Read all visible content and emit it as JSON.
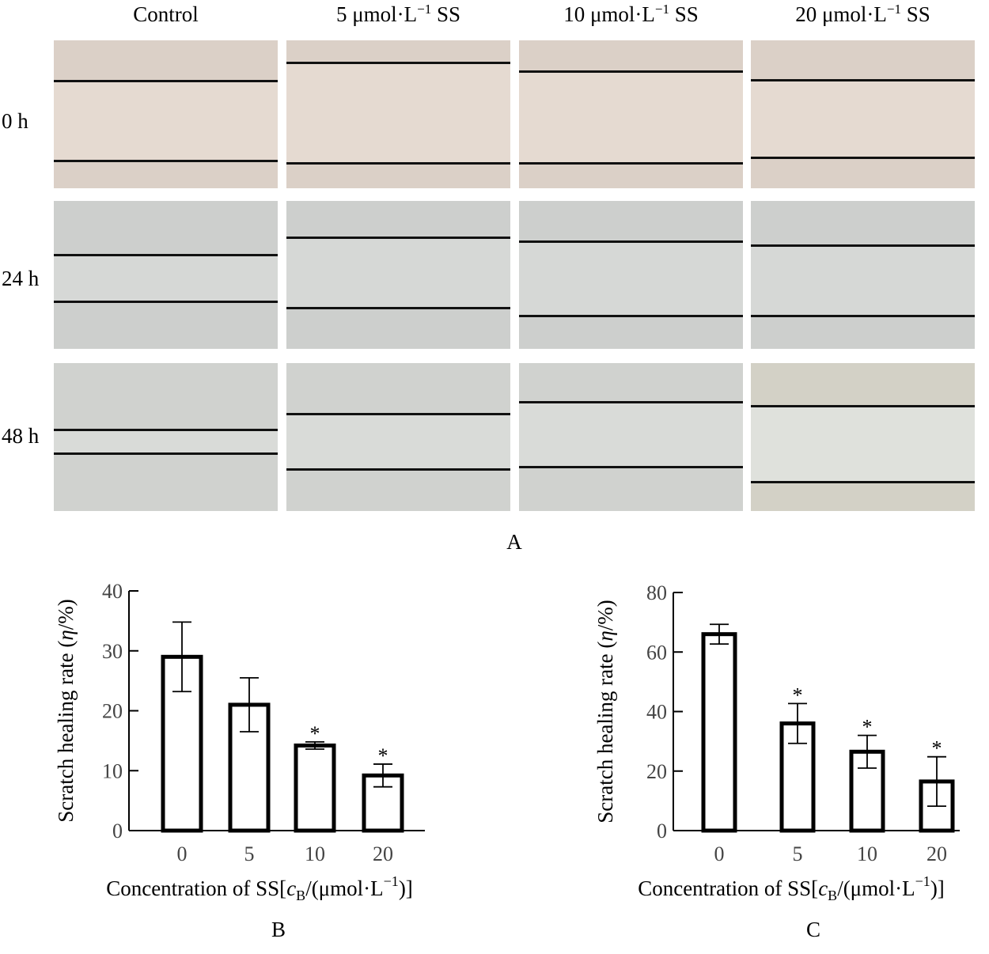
{
  "figure_a": {
    "columns": [
      {
        "main": "Control",
        "sup": "",
        "tail": ""
      },
      {
        "main": "5 μmol·L",
        "sup": "−1",
        "tail": " SS"
      },
      {
        "main": "10 μmol·L",
        "sup": "−1",
        "tail": " SS"
      },
      {
        "main": "20 μmol·L",
        "sup": "−1",
        "tail": " SS"
      }
    ],
    "rows": [
      "0 h",
      "24 h",
      "48 h"
    ],
    "caption": "A"
  },
  "chart_data": [
    {
      "type": "bar",
      "panel": "B",
      "caption": "B",
      "categories": [
        "0",
        "5",
        "10",
        "20"
      ],
      "values": [
        29,
        21,
        14.2,
        9.2
      ],
      "errors": [
        5.8,
        4.5,
        0.6,
        1.9
      ],
      "significance": [
        "",
        "",
        "*",
        "*"
      ],
      "ylim": [
        0,
        40
      ],
      "yticks": [
        0,
        10,
        20,
        30,
        40
      ],
      "ylabel_main": "Scratch healing rate (",
      "ylabel_var": "η",
      "ylabel_unit": "/%)",
      "xlabel_main": "Concentration of SS[",
      "xlabel_var": "c",
      "xlabel_sub": "B",
      "xlabel_unit": "/(μmol·L",
      "xlabel_sup": "−1",
      "xlabel_end": ")]"
    },
    {
      "type": "bar",
      "panel": "C",
      "caption": "C",
      "categories": [
        "0",
        "5",
        "10",
        "20"
      ],
      "values": [
        66,
        36,
        26.5,
        16.5
      ],
      "errors": [
        3.3,
        6.7,
        5.5,
        8.3
      ],
      "significance": [
        "",
        "*",
        "*",
        "*"
      ],
      "ylim": [
        0,
        80
      ],
      "yticks": [
        0,
        20,
        40,
        60,
        80
      ],
      "ylabel_main": "Scratch healing rate (",
      "ylabel_var": "η",
      "ylabel_unit": "/%)",
      "xlabel_main": "Concentration of SS[",
      "xlabel_var": "c",
      "xlabel_sub": "B",
      "xlabel_unit": "/(μmol·L",
      "xlabel_sup": "−1",
      "xlabel_end": ")]"
    }
  ]
}
